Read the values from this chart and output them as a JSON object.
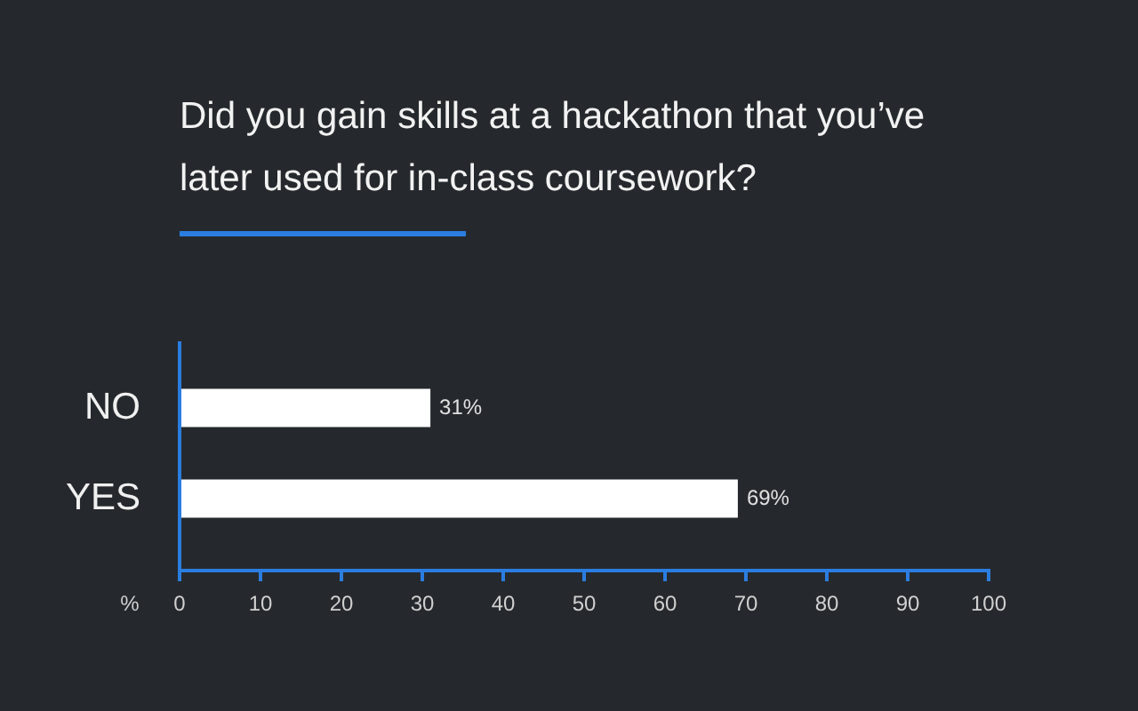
{
  "chart_data": {
    "type": "bar",
    "orientation": "horizontal",
    "title": "Did you gain skills at a hackathon that you’ve later used for in-class coursework?",
    "xlabel": "%",
    "categories": [
      "NO",
      "YES"
    ],
    "values": [
      31,
      69
    ],
    "color": "#ffffff",
    "value_labels": [
      "31%",
      "69%"
    ],
    "xlim": [
      0,
      100
    ],
    "xticks": [
      0,
      10,
      20,
      30,
      40,
      50,
      60,
      70,
      80,
      90,
      100
    ]
  }
}
